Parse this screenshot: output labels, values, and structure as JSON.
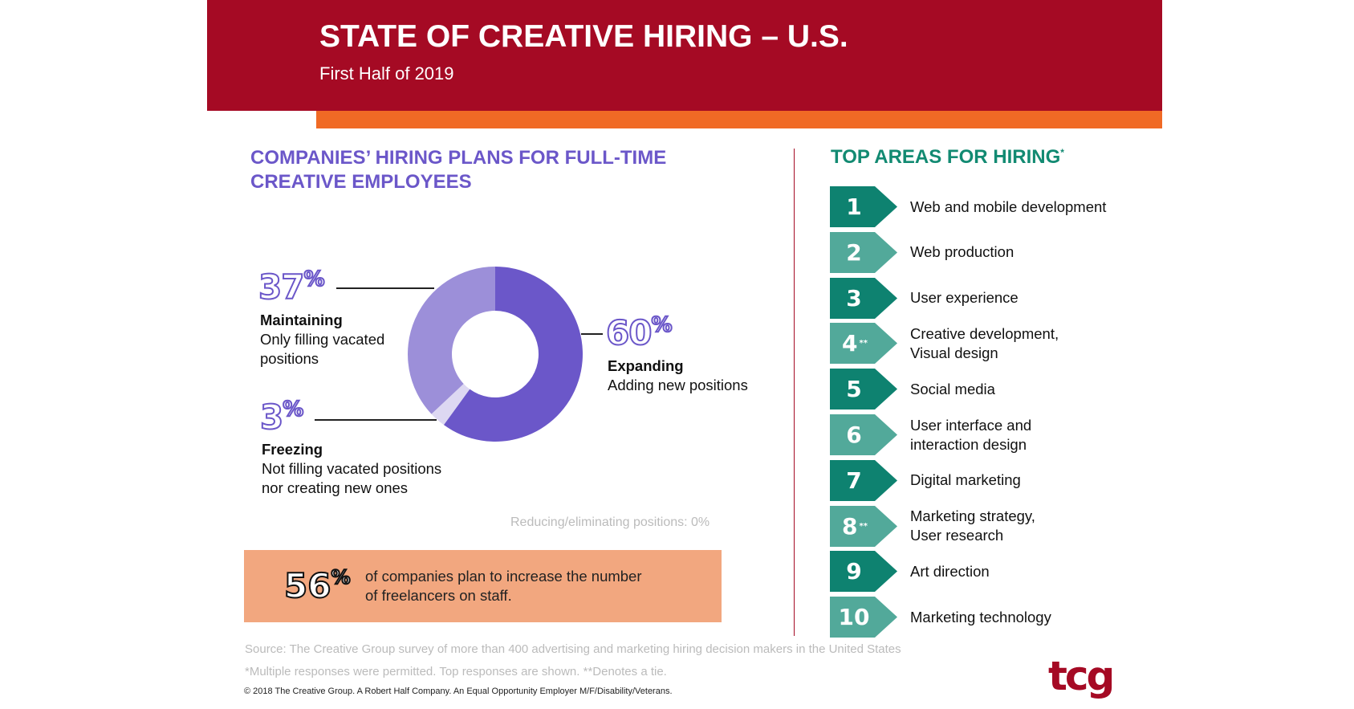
{
  "header": {
    "title": "STATE OF CREATIVE HIRING – U.S.",
    "subtitle": "First Half of 2019"
  },
  "left": {
    "title_line1": "COMPANIES’ HIRING PLANS FOR FULL-TIME",
    "title_line2": "CREATIVE EMPLOYEES"
  },
  "chart_data": {
    "type": "pie",
    "donut": true,
    "categories": [
      "Expanding",
      "Freezing",
      "Maintaining"
    ],
    "values": [
      60,
      3,
      37
    ],
    "colors": [
      "#6b57c9",
      "#ddd8f2",
      "#9c8fd9"
    ],
    "labels": [
      {
        "pct": "60",
        "sign": "%",
        "name": "Expanding",
        "desc": "Adding new positions"
      },
      {
        "pct": "3",
        "sign": "%",
        "name": "Freezing",
        "desc1": "Not filling vacated positions",
        "desc2": "nor creating new ones"
      },
      {
        "pct": "37",
        "sign": "%",
        "name": "Maintaining",
        "desc1": "Only filling vacated",
        "desc2": "positions"
      }
    ],
    "note": "Reducing/eliminating positions: 0%"
  },
  "freelance": {
    "pct": "56",
    "sign": "%",
    "line1": "of companies plan to increase the number",
    "line2": "of freelancers on staff."
  },
  "right": {
    "title": "TOP AREAS FOR HIRING",
    "title_mark": "*",
    "colors": {
      "dark": "#0e8270",
      "light": "#52a99a"
    },
    "items": [
      {
        "rank": "1",
        "mark": "",
        "l1": "Web and mobile development",
        "l2": ""
      },
      {
        "rank": "2",
        "mark": "",
        "l1": "Web production",
        "l2": ""
      },
      {
        "rank": "3",
        "mark": "",
        "l1": "User experience",
        "l2": ""
      },
      {
        "rank": "4",
        "mark": "**",
        "l1": "Creative development,",
        "l2": "Visual design"
      },
      {
        "rank": "5",
        "mark": "",
        "l1": "Social media",
        "l2": ""
      },
      {
        "rank": "6",
        "mark": "",
        "l1": "User interface and",
        "l2": "interaction design"
      },
      {
        "rank": "7",
        "mark": "",
        "l1": "Digital marketing",
        "l2": ""
      },
      {
        "rank": "8",
        "mark": "**",
        "l1": "Marketing strategy,",
        "l2": "User research"
      },
      {
        "rank": "9",
        "mark": "",
        "l1": "Art direction",
        "l2": ""
      },
      {
        "rank": "10",
        "mark": "",
        "l1": "Marketing technology",
        "l2": ""
      }
    ]
  },
  "footer": {
    "source": "Source: The Creative Group survey of more than 400 advertising and marketing hiring decision makers in the United States",
    "note": "*Multiple responses were permitted. Top responses are shown. **Denotes a tie.",
    "copyright": "© 2018 The Creative Group. A Robert Half Company. An Equal Opportunity Employer M/F/Disability/Veterans.",
    "logo": "tcg"
  }
}
